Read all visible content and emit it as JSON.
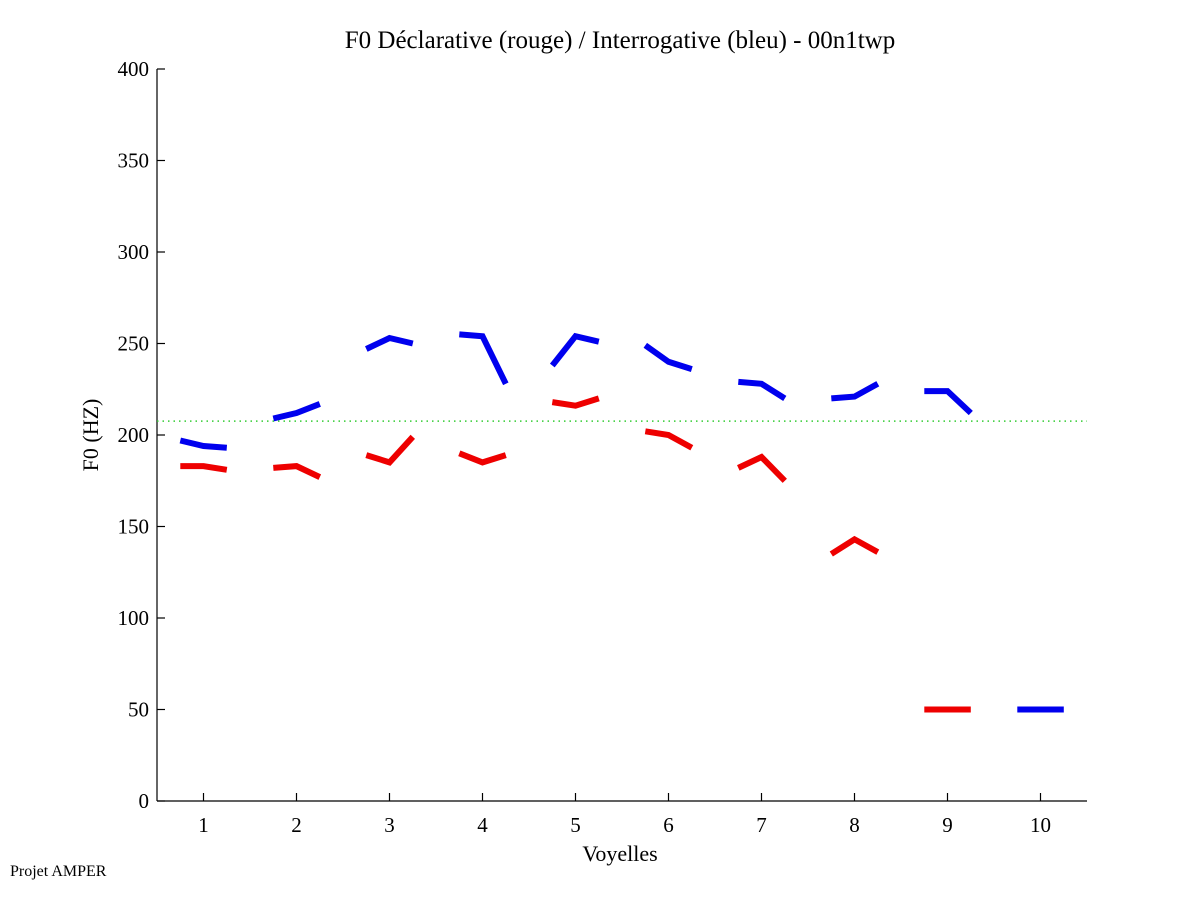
{
  "chart_data": {
    "type": "line",
    "title": "F0 Déclarative (rouge) / Interrogative (bleu) - 00n1twp",
    "xlabel": "Voyelles",
    "ylabel": "F0 (HZ)",
    "xlim": [
      0.5,
      10.5
    ],
    "ylim": [
      0,
      400
    ],
    "xticks": [
      "1",
      "2",
      "3",
      "4",
      "5",
      "6",
      "7",
      "8",
      "9",
      "10"
    ],
    "yticks": [
      "0",
      "50",
      "100",
      "150",
      "200",
      "250",
      "300",
      "350",
      "400"
    ],
    "grid": false,
    "reference_line": {
      "value": 207.6,
      "color": "#33cc33",
      "style": "dotted"
    },
    "series": [
      {
        "name": "Déclarative (rouge)",
        "color": "#ee0000",
        "segments": [
          {
            "vowel": 1,
            "values": [
              183,
              183,
              181
            ]
          },
          {
            "vowel": 2,
            "values": [
              182,
              183,
              177
            ]
          },
          {
            "vowel": 3,
            "values": [
              189,
              185,
              199
            ]
          },
          {
            "vowel": 4,
            "values": [
              190,
              185,
              189
            ]
          },
          {
            "vowel": 5,
            "values": [
              218,
              216,
              220
            ]
          },
          {
            "vowel": 6,
            "values": [
              202,
              200,
              193
            ]
          },
          {
            "vowel": 7,
            "values": [
              182,
              188,
              175
            ]
          },
          {
            "vowel": 8,
            "values": [
              135,
              143,
              136
            ]
          },
          {
            "vowel": 9,
            "values": [
              50,
              50,
              50
            ]
          }
        ]
      },
      {
        "name": "Interrogative (bleu)",
        "color": "#0000ee",
        "segments": [
          {
            "vowel": 1,
            "values": [
              197,
              194,
              193
            ]
          },
          {
            "vowel": 2,
            "values": [
              209,
              212,
              217
            ]
          },
          {
            "vowel": 3,
            "values": [
              247,
              253,
              250
            ]
          },
          {
            "vowel": 4,
            "values": [
              255,
              254,
              228
            ]
          },
          {
            "vowel": 5,
            "values": [
              238,
              254,
              251
            ]
          },
          {
            "vowel": 6,
            "values": [
              249,
              240,
              236
            ]
          },
          {
            "vowel": 7,
            "values": [
              229,
              228,
              220
            ]
          },
          {
            "vowel": 8,
            "values": [
              220,
              221,
              228
            ]
          },
          {
            "vowel": 9,
            "values": [
              224,
              224,
              212
            ]
          },
          {
            "vowel": 10,
            "values": [
              50,
              50,
              50
            ]
          }
        ]
      }
    ]
  },
  "footer": {
    "credit": "Projet AMPER"
  }
}
